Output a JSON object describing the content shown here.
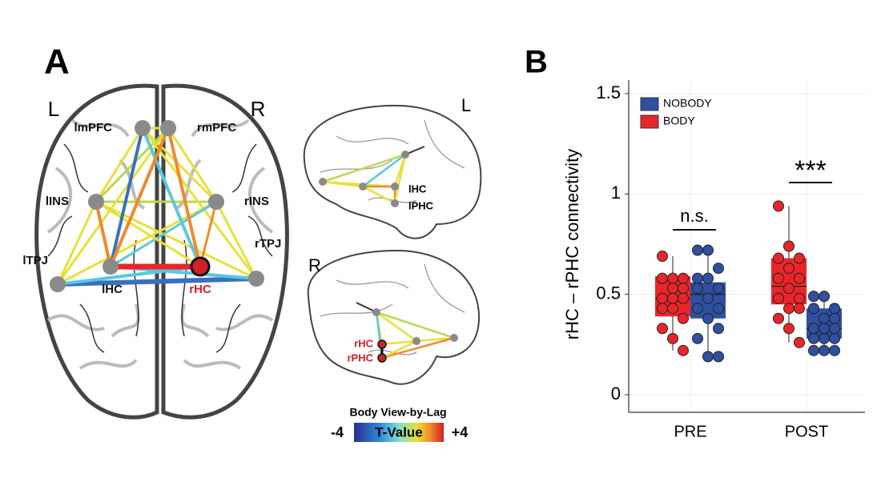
{
  "panel_a": {
    "label": "A",
    "axial": {
      "left": "L",
      "right": "R",
      "nodes": [
        "lmPFC",
        "rmPFC",
        "lINS",
        "rINS",
        "rTPJ",
        "lTPJ",
        "lHC",
        "rHC"
      ]
    },
    "sagittal_left": {
      "side": "L",
      "nodes": [
        "lHC",
        "lPHC"
      ]
    },
    "sagittal_right": {
      "side": "R",
      "nodes": [
        "rHC",
        "rPHC"
      ]
    },
    "colorbar": {
      "title": "Body View-by-Lag",
      "label": "T-Value",
      "ticks": [
        -4,
        {
          "value": 4,
          "label": "+4"
        }
      ]
    }
  },
  "chart_data": {
    "type": "box",
    "panel_label": "B",
    "y_label": "rHC – rPHC connectivity",
    "categories": [
      "PRE",
      "POST"
    ],
    "ylim": [
      0,
      1.5
    ],
    "yticks": [
      0,
      0.5,
      1,
      1.5
    ],
    "grid": true,
    "legend": "top-left",
    "annotations": [
      "n.s.",
      "***"
    ],
    "series": [
      {
        "name": "NOBODY",
        "color": "#2f4fa0",
        "stats": [
          {
            "min": 0.19,
            "q1": 0.38,
            "median": 0.5,
            "q3": 0.56,
            "max": 0.72
          },
          {
            "min": 0.22,
            "q1": 0.28,
            "median": 0.33,
            "q3": 0.43,
            "max": 0.49
          }
        ],
        "points": [
          [
            0.72,
            0.72,
            0.63,
            0.58,
            0.58,
            0.53,
            0.53,
            0.48,
            0.43,
            0.43,
            0.38,
            0.33,
            0.28,
            0.19,
            0.19
          ],
          [
            0.49,
            0.49,
            0.43,
            0.43,
            0.38,
            0.38,
            0.33,
            0.33,
            0.33,
            0.28,
            0.28,
            0.28,
            0.22,
            0.22,
            0.22
          ]
        ]
      },
      {
        "name": "BODY",
        "color": "#e8262a",
        "stats": [
          {
            "min": 0.22,
            "q1": 0.39,
            "median": 0.48,
            "q3": 0.59,
            "max": 0.69
          },
          {
            "min": 0.26,
            "q1": 0.45,
            "median": 0.54,
            "q3": 0.68,
            "max": 0.94
          }
        ],
        "points": [
          [
            0.69,
            0.58,
            0.58,
            0.58,
            0.53,
            0.53,
            0.48,
            0.48,
            0.48,
            0.43,
            0.43,
            0.38,
            0.33,
            0.28,
            0.22
          ],
          [
            0.94,
            0.74,
            0.68,
            0.68,
            0.63,
            0.58,
            0.58,
            0.53,
            0.48,
            0.48,
            0.43,
            0.43,
            0.38,
            0.33,
            0.26
          ]
        ]
      }
    ]
  }
}
